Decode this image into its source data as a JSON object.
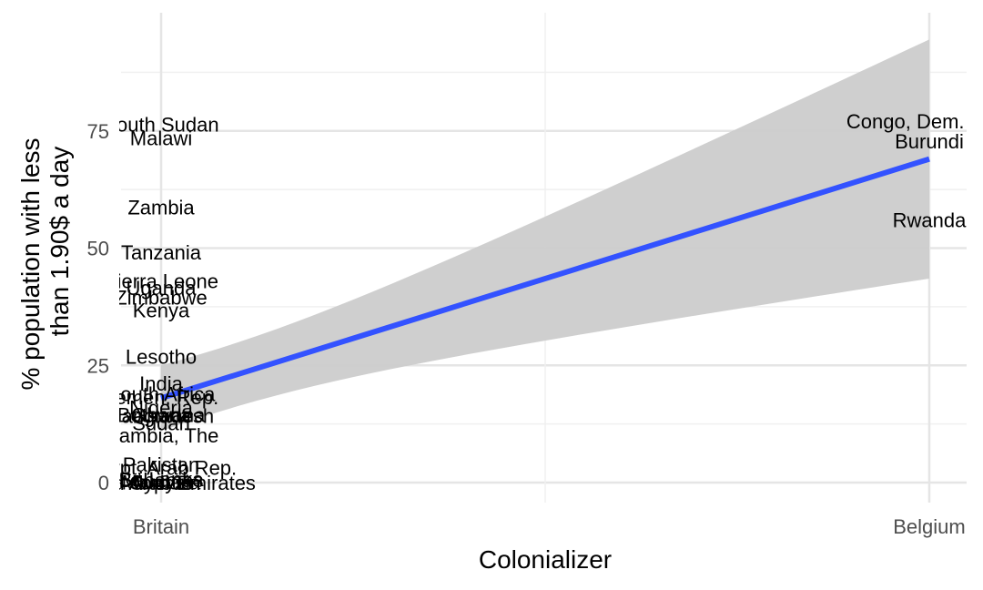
{
  "chart_data": {
    "type": "scatter",
    "title": "",
    "xlabel": "Colonializer",
    "ylabel_lines": [
      "% population with less",
      "than 1.90$ a day"
    ],
    "categories": [
      "Britain",
      "Belgium"
    ],
    "y_ticks": [
      0,
      25,
      50,
      75
    ],
    "ylim": [
      -4,
      95
    ],
    "grid": true,
    "colors": {
      "trend": "#3352ff",
      "band": "#cccccc",
      "grid_major": "#e5e5e5",
      "grid_minor": "#f0f0f0",
      "text": "#000000",
      "tick": "#4d4d4d"
    },
    "points": [
      {
        "label": "South Sudan",
        "x": "Britain",
        "y": 76.4
      },
      {
        "label": "Malawi",
        "x": "Britain",
        "y": 73.5
      },
      {
        "label": "Zambia",
        "x": "Britain",
        "y": 58.7
      },
      {
        "label": "Tanzania",
        "x": "Britain",
        "y": 49.1
      },
      {
        "label": "Sierra Leone",
        "x": "Britain",
        "y": 43.0
      },
      {
        "label": "Uganda",
        "x": "Britain",
        "y": 41.6
      },
      {
        "label": "Zimbabwe",
        "x": "Britain",
        "y": 39.5
      },
      {
        "label": "Kenya",
        "x": "Britain",
        "y": 36.8
      },
      {
        "label": "Lesotho",
        "x": "Britain",
        "y": 26.9
      },
      {
        "label": "India",
        "x": "Britain",
        "y": 21.2
      },
      {
        "label": "South Africa",
        "x": "Britain",
        "y": 18.9
      },
      {
        "label": "Yemen, Rep.",
        "x": "Britain",
        "y": 18.3
      },
      {
        "label": "Nigeria",
        "x": "Britain",
        "y": 16.0
      },
      {
        "label": "Ghana",
        "x": "Britain",
        "y": 14.5
      },
      {
        "label": "Bangladesh",
        "x": "Britain",
        "y": 14.3
      },
      {
        "label": "Botswana",
        "x": "Britain",
        "y": 14.5
      },
      {
        "label": "Sudan",
        "x": "Britain",
        "y": 12.7
      },
      {
        "label": "Gambia, The",
        "x": "Britain",
        "y": 10.1
      },
      {
        "label": "Pakistan",
        "x": "Britain",
        "y": 3.9
      },
      {
        "label": "Egypt, Arab Rep.",
        "x": "Britain",
        "y": 3.2
      },
      {
        "label": "Sri Lanka",
        "x": "Britain",
        "y": 0.8
      },
      {
        "label": "Bahamas",
        "x": "Britain",
        "y": 0.6
      },
      {
        "label": "Malaysia",
        "x": "Britain",
        "y": 0.1
      },
      {
        "label": "Cyprus",
        "x": "Britain",
        "y": 0.0
      },
      {
        "label": "Jordan",
        "x": "Britain",
        "y": 0.1
      },
      {
        "label": "United Arab Emirates",
        "x": "Britain",
        "y": 0.0
      },
      {
        "label": "Congo, Dem. Rep.",
        "x": "Belgium",
        "y": 77.1
      },
      {
        "label": "Burundi",
        "x": "Belgium",
        "y": 72.8
      },
      {
        "label": "Rwanda",
        "x": "Belgium",
        "y": 56.0
      }
    ],
    "trend": {
      "x": [
        "Britain",
        "Belgium"
      ],
      "y": [
        18.0,
        69.0
      ],
      "lower": [
        11.0,
        43.5
      ],
      "upper": [
        25.0,
        94.5
      ]
    }
  }
}
